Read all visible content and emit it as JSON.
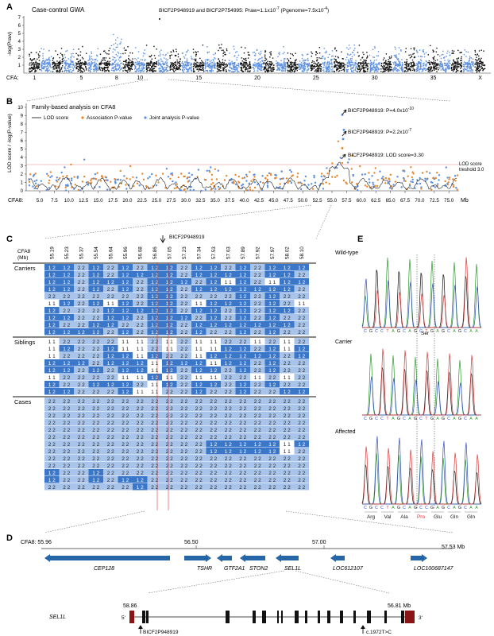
{
  "panels": {
    "A": {
      "letter": "A",
      "title": "Case-control GWA",
      "ylabel": "-log(Praw)",
      "annotation": "BICF2P948919 and BICF2P754995: Praw=1.1x10",
      "annotation_exp": "-7",
      "annotation_mid": " (Pgenome=7.5x10",
      "annotation_exp2": "-4",
      "annotation_end": ")",
      "cfa_label": "CFA:",
      "chromosomes": [
        "1",
        "5",
        "8",
        "10",
        "15",
        "20",
        "25",
        "30",
        "35",
        "X"
      ]
    },
    "B": {
      "letter": "B",
      "title": "Family-based analysis on CFA8",
      "ylabel": "LOD score / -log(P-value)",
      "legend": [
        "LOD score",
        "Association P-value",
        "Joint analysis P-value"
      ],
      "ann1": "BICF2P948919: P=4.0x10",
      "ann1_exp": "-10",
      "ann2": "BICF2P948919: P=2.2x10",
      "ann2_exp": "-7",
      "ann3": "BICF2P948919: LOD score=3.30",
      "threshold_label": "LOD score\ntreshold 3.0",
      "threshold_l1": "LOD score",
      "threshold_l2": "treshold 3.0",
      "cfa_label": "CFA8:",
      "mb_label": "Mb",
      "yticks": [
        "0",
        "1",
        "2",
        "3",
        "4",
        "5",
        "6",
        "7",
        "8",
        "9",
        "10"
      ],
      "xticks": [
        "5.0",
        "7.5",
        "10.0",
        "12.5",
        "15.0",
        "17.5",
        "20.0",
        "22.5",
        "25.0",
        "27.5",
        "30.0",
        "32.5",
        "35.0",
        "37.5",
        "40.0",
        "42.5",
        "45.0",
        "47.5",
        "50.0",
        "52.5",
        "55.0",
        "57.5",
        "60.0",
        "62.5",
        "65.0",
        "67.5",
        "70.0",
        "72.5",
        "75.0"
      ]
    },
    "C": {
      "letter": "C",
      "header_cfa": "CFA8",
      "header_mb": "(Mb)",
      "marker": "BICF2P948919",
      "positions": [
        "55.19",
        "55.23",
        "55.37",
        "55.54",
        "55.64",
        "55.96",
        "56.68",
        "56.86",
        "57.05",
        "57.23",
        "57.34",
        "57.53",
        "57.63",
        "57.89",
        "57.92",
        "57.97",
        "58.02",
        "58.10"
      ],
      "groups": [
        "Carriers",
        "Siblings",
        "Cases"
      ],
      "carriers": [
        "12 12 22 12 22 12 22 12 12 22 12 12 22 12 22 12 12 12",
        "12 12 22 12 22 12 12 12 12 22 12 12 12 12 22 12 12 22",
        "12 12 22 12 12 12 22 12 12 12 22 12 11 12 22 11 12 12",
        "12 12 22 12 22 12 22 12 12 22 12 12 12 12 12 12 12 22",
        "22 22 22 22 22 22 22 12 12 22 22 22 22 12 22 12 22 22",
        "11 12 22 12 11 12 22 12 12 22 11 12 12 12 22 12 22 11",
        "12 22 22 22 12 12 12 12 12 22 12 12 22 12 22 12 12 22",
        "12 12 22 22 12 12 22 12 12 12 22 12 22 12 22 12 22 22",
        "12 22 22 12 12 22 22 12 12 22 12 12 12 12 12 12 12 22",
        "12 12 12 12 22 12 22 12 12 22 12 22 22 12 22 12 22 22"
      ],
      "siblings": [
        "11 22 22 22 22 11 11 22 11 22 11 11 22 22 11 22 11 22",
        "11 12 22 22 12 11 11 22 11 22 11 11 12 12 22 12 11 12",
        "11 22 22 22 12 12 11 12 22 22 11 12 12 12 12 12 22 12",
        "12 12 12 22 12 12 12 11 12 12 12 11 12 12 22 12 22 22",
        "12 12 22 12 22 12 12 11 12 22 12 12 22 12 22 12 22 22",
        "11 22 22 22 22 11 11 12 11 22 11 11 22 22 11 22 11 22",
        "12 22 22 12 12 12 22 11 12 22 12 12 22 12 22 12 22 22",
        "12 12 22 22 22 12 11 11 22 22 12 22 22 12 22 22 12 12"
      ],
      "cases": [
        "22 22 22 22 22 22 22 22 22 22 22 22 22 22 22 22 22 22",
        "22 22 22 22 22 22 22 22 22 22 22 22 22 22 22 22 22 22",
        "22 22 22 22 22 22 22 22 22 22 22 22 22 22 22 22 22 22",
        "22 22 22 22 22 22 22 22 22 22 22 22 22 22 22 22 22 22",
        "22 22 22 22 22 22 22 22 22 22 22 22 22 22 22 22 22 22",
        "22 22 22 22 22 22 22 22 22 22 22 22 22 22 22 22 22 22",
        "22 22 22 22 22 22 22 22 22 22 22 12 12 12 12 12 11 12",
        "22 22 22 22 22 22 22 22 22 22 22 12 12 12 12 12 11 22",
        "22 22 22 22 22 22 22 22 22 22 22 22 22 22 22 22 22 22",
        "22 22 22 22 22 22 22 22 22 22 22 22 22 22 22 22 22 22",
        "12 22 22 12 22 22 22 22 22 22 22 22 22 22 22 22 22 22",
        "12 22 22 12 22 12 12 22 22 22 22 22 22 22 22 22 22 22",
        "22 22 22 22 22 22 12 22 22 22 22 22 22 22 22 22 22 22"
      ]
    },
    "D": {
      "letter": "D",
      "cfa_label": "CFA8: 55.96",
      "tick_mid1": "56.50",
      "tick_mid2": "57.00",
      "tick_end": "57.53 Mb",
      "genes": [
        "CEP128",
        "TSHR",
        "GTF2A1",
        "STON2",
        "SEL1L",
        "LOC612107",
        "LOC100687147"
      ],
      "gene_label": "SEL1L",
      "start_pos": "58.86",
      "end_pos": "56.81 Mb",
      "five_prime": "5'",
      "three_prime": "3'",
      "snp_label": "BICF2P948919",
      "mutation_label": "c.1972T>C"
    },
    "E": {
      "letter": "E",
      "rows": [
        "Wild-type",
        "Carrier",
        "Affected"
      ],
      "seq": "CGCCTAGCAGCTGAGCAGCAA",
      "seq_aff": "CGCCTAGCAGCCGAGCAGCAA",
      "ser": "Ser",
      "aa": [
        "Arg",
        "Val",
        "Ala",
        "Pro",
        "Glu",
        "Gln",
        "Gln"
      ]
    }
  },
  "colors": {
    "blue": "#5b8fe0",
    "black": "#111111",
    "orange": "#e8862a",
    "gt12": "#3b77c9",
    "gt22": "#a9c4ea",
    "gt11": "#ffffff",
    "red": "#d23a3a",
    "exon": "#111111",
    "utr": "#8b1414"
  }
}
